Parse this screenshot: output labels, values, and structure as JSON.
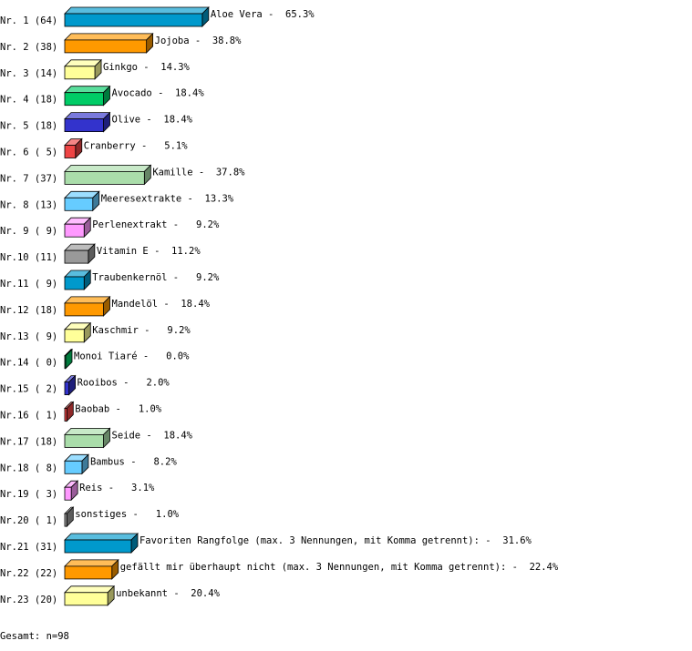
{
  "chart_data": {
    "type": "bar",
    "orientation": "horizontal",
    "style": "3d",
    "unit": "%",
    "categories": [
      "Nr. 1 (64)",
      "Nr. 2 (38)",
      "Nr. 3 (14)",
      "Nr. 4 (18)",
      "Nr. 5 (18)",
      "Nr. 6 ( 5)",
      "Nr. 7 (37)",
      "Nr. 8 (13)",
      "Nr. 9 ( 9)",
      "Nr.10 (11)",
      "Nr.11 ( 9)",
      "Nr.12 (18)",
      "Nr.13 ( 9)",
      "Nr.14 ( 0)",
      "Nr.15 ( 2)",
      "Nr.16 ( 1)",
      "Nr.17 (18)",
      "Nr.18 ( 8)",
      "Nr.19 ( 3)",
      "Nr.20 ( 1)",
      "Nr.21 (31)",
      "Nr.22 (22)",
      "Nr.23 (20)"
    ],
    "counts": [
      64,
      38,
      14,
      18,
      18,
      5,
      37,
      13,
      9,
      11,
      9,
      18,
      9,
      0,
      2,
      1,
      18,
      8,
      3,
      1,
      31,
      22,
      20
    ],
    "names": [
      "Aloe Vera",
      "Jojoba",
      "Ginkgo",
      "Avocado",
      "Olive",
      "Cranberry",
      "Kamille",
      "Meeresextrakte",
      "Perlenextrakt",
      "Vitamin E",
      "Traubenkernöl",
      "Mandelöl",
      "Kaschmir",
      "Monoi Tiaré",
      "Rooibos",
      "Baobab",
      "Seide",
      "Bambus",
      "Reis",
      "sonstiges",
      "Favoriten Rangfolge (max. 3 Nennungen, mit Komma getrennt):",
      "gefällt mir überhaupt nicht (max. 3 Nennungen, mit Komma getrennt):",
      "unbekannt"
    ],
    "values": [
      65.3,
      38.8,
      14.3,
      18.4,
      18.4,
      5.1,
      37.8,
      13.3,
      9.2,
      11.2,
      9.2,
      18.4,
      9.2,
      0.0,
      2.0,
      1.0,
      18.4,
      8.2,
      3.1,
      1.0,
      31.6,
      22.4,
      20.4
    ],
    "value_labels": [
      "65.3%",
      "38.8%",
      "14.3%",
      "18.4%",
      "18.4%",
      "5.1%",
      "37.8%",
      "13.3%",
      "9.2%",
      "11.2%",
      "9.2%",
      "18.4%",
      "9.2%",
      "0.0%",
      "2.0%",
      "1.0%",
      "18.4%",
      "8.2%",
      "3.1%",
      "1.0%",
      "31.6%",
      "22.4%",
      "20.4%"
    ],
    "palette": [
      "#0099cc",
      "#ff9900",
      "#ffff99",
      "#00cc66",
      "#3333cc",
      "#ee4444",
      "#aaddaa",
      "#66ccff",
      "#ff99ff",
      "#999999"
    ],
    "grid": false,
    "legend": "none"
  },
  "footer": {
    "total": "Gesamt: n=98"
  }
}
